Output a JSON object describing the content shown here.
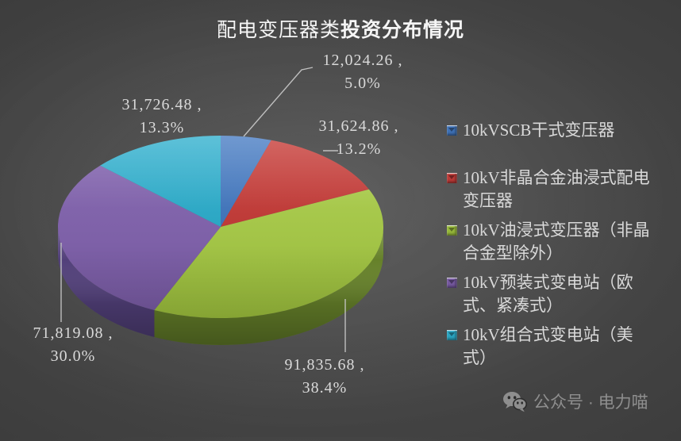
{
  "title": {
    "text": "配电变压器类投资分布情况",
    "part1": "配电变压器类",
    "part2": "投资分布情况"
  },
  "chart_data": {
    "type": "pie",
    "style": "3d",
    "title": "配电变压器类投资分布情况",
    "legend_position": "right",
    "start_angle_deg": 0,
    "direction": "clockwise",
    "slices": [
      {
        "name": "10kVSCB干式变压器",
        "value": 12024.26,
        "pct": 5.0,
        "value_label": "12,024.26 ,",
        "pct_label": "5.0%",
        "color": "#3F72B7",
        "light": "#5787C8",
        "side": "#2C517F"
      },
      {
        "name": "10kV非晶合金油浸式配电变压器",
        "value": 31624.86,
        "pct": 13.2,
        "value_label": "31,624.86 ,",
        "pct_label": "13.2%",
        "color": "#BD3A37",
        "light": "#CB4B47",
        "side": "#8B2A28"
      },
      {
        "name": "10kV油浸式变压器（非晶合金型除外）",
        "value": 91835.68,
        "pct": 38.4,
        "value_label": "91,835.68 ,",
        "pct_label": "38.4%",
        "color": "#98BA3B",
        "light": "#AACB4F",
        "side": "#66812A"
      },
      {
        "name": "10kV预装式变电站（欧式、紧凑式）",
        "value": 71819.08,
        "pct": 30.0,
        "value_label": "71,819.08 ,",
        "pct_label": "30.0%",
        "color": "#7659A0",
        "light": "#8669B0",
        "side": "#52407A"
      },
      {
        "name": "10kV组合式变电站（美式）",
        "value": 31726.48,
        "pct": 13.3,
        "value_label": "31,726.48 ,",
        "pct_label": "13.3%",
        "color": "#2BA6C3",
        "light": "#41B6D2",
        "side": "#1F7A92"
      }
    ],
    "colors": {
      "label_text": "#D9D9D9",
      "leader_line": "#C9C9C9",
      "legend_text": "#D9D9D9",
      "title_text": "#F5F5F5",
      "watermark_text": "#8E8E8E"
    }
  },
  "watermark": {
    "label": "公众号 · 电力喵"
  }
}
